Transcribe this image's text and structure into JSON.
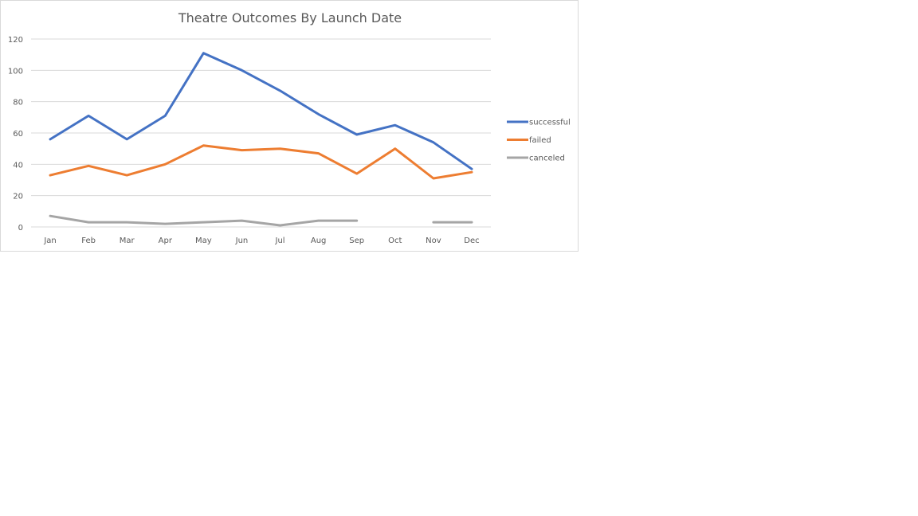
{
  "chart_data": {
    "type": "line",
    "title": "Theatre Outcomes By Launch Date",
    "xlabel": "",
    "ylabel": "",
    "categories": [
      "Jan",
      "Feb",
      "Mar",
      "Apr",
      "May",
      "Jun",
      "Jul",
      "Aug",
      "Sep",
      "Oct",
      "Nov",
      "Dec"
    ],
    "ylim": [
      0,
      120
    ],
    "yticks": [
      0,
      20,
      40,
      60,
      80,
      100,
      120
    ],
    "grid": true,
    "legend_position": "right",
    "series": [
      {
        "name": "successful",
        "color": "#4472C4",
        "values": [
          56,
          71,
          56,
          71,
          111,
          100,
          87,
          72,
          59,
          65,
          54,
          37
        ]
      },
      {
        "name": "failed",
        "color": "#ED7D31",
        "values": [
          33,
          39,
          33,
          40,
          52,
          49,
          50,
          47,
          34,
          50,
          31,
          35
        ]
      },
      {
        "name": "canceled",
        "color": "#A5A5A5",
        "values": [
          7,
          3,
          3,
          2,
          3,
          4,
          1,
          4,
          4,
          null,
          3,
          3
        ]
      }
    ]
  }
}
